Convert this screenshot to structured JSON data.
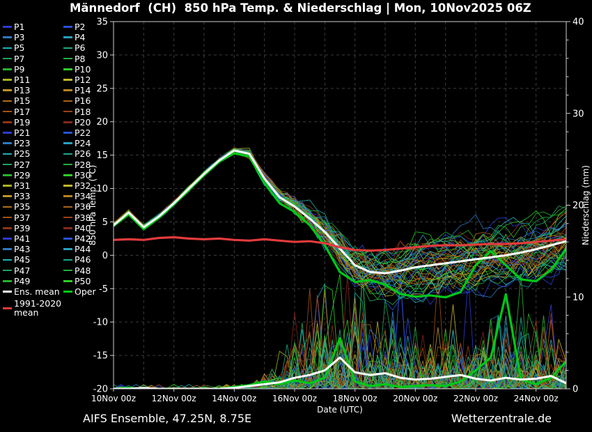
{
  "title": "Männedorf  (CH)  850 hPa Temp. & Niederschlag | Mon, 10Nov2025 06Z",
  "footer": {
    "left": "AIFS Ensemble, 47.25N, 8.75E",
    "right": "Wetterzentrale.de"
  },
  "legend": {
    "members": [
      "P1",
      "P2",
      "P3",
      "P4",
      "P5",
      "P6",
      "P7",
      "P8",
      "P9",
      "P10",
      "P11",
      "P12",
      "P13",
      "P14",
      "P15",
      "P16",
      "P17",
      "P18",
      "P19",
      "P20",
      "P21",
      "P22",
      "P23",
      "P24",
      "P25",
      "P26",
      "P27",
      "P28",
      "P29",
      "P30",
      "P31",
      "P32",
      "P33",
      "P34",
      "P35",
      "P36",
      "P37",
      "P38",
      "P39",
      "P40",
      "P41",
      "P42",
      "P43",
      "P44",
      "P45",
      "P46",
      "P47",
      "P48",
      "P49",
      "P50"
    ],
    "ens_mean_label": "Ens. mean",
    "oper_label": "Oper",
    "climate_label": "1991-2020 mean"
  },
  "colors": {
    "background": "#000000",
    "grid": "#3c3c3c",
    "axis": "#d0d0d0",
    "text": "#ffffff",
    "ens_mean": "#ffffff",
    "oper": "#00c818",
    "climate": "#e23b3b",
    "member_palette": [
      "#2b3bd1",
      "#2952d6",
      "#2d7ac2",
      "#28a0c0",
      "#1fb0b4",
      "#1ca887",
      "#1fa55e",
      "#24ad3f",
      "#27b42c",
      "#2ecc29",
      "#a8b21f",
      "#c3b62a",
      "#bd9623",
      "#b5831d",
      "#b06f18",
      "#aa6114",
      "#a45112",
      "#9c4214",
      "#8f3318",
      "#84281b"
    ]
  },
  "chart_data": {
    "type": "line",
    "x": {
      "label": "Date (UTC)",
      "total_hours": 360,
      "hours_step": 12,
      "grid_hours_step": 24,
      "tick_hours": [
        0,
        48,
        96,
        144,
        192,
        240,
        288,
        336
      ],
      "tick_labels": [
        "10Nov 00z",
        "12Nov 00z",
        "14Nov 00z",
        "16Nov 00z",
        "18Nov 00z",
        "20Nov 00z",
        "22Nov 00z",
        "24Nov 00z"
      ]
    },
    "y_left": {
      "label": "850 hPa Temp. (°C)",
      "min": -20,
      "max": 35,
      "ticks": [
        35,
        30,
        25,
        20,
        15,
        10,
        5,
        0,
        -5,
        -10,
        -15,
        -20
      ]
    },
    "y_right": {
      "label": "Niederschlag (mm)",
      "min": 0,
      "max": 40,
      "ticks": [
        40,
        30,
        20,
        10,
        0
      ],
      "minor_step": 2
    },
    "series": {
      "ens_mean_temp": [
        4.5,
        6.4,
        4.2,
        5.8,
        7.8,
        10.0,
        12.2,
        14.2,
        15.7,
        15.2,
        11.5,
        8.7,
        7.3,
        5.5,
        3.5,
        1.0,
        -1.5,
        -2.5,
        -2.7,
        -2.3,
        -1.8,
        -1.5,
        -1.2,
        -0.9,
        -0.6,
        -0.3,
        0.0,
        0.4,
        0.9,
        1.5,
        2.1
      ],
      "oper_temp": [
        4.4,
        6.1,
        3.9,
        5.6,
        7.6,
        9.8,
        12.0,
        14.0,
        15.3,
        14.8,
        10.8,
        7.8,
        6.5,
        4.5,
        1.5,
        -2.5,
        -4.0,
        -3.7,
        -4.4,
        -5.8,
        -6.2,
        -6.0,
        -6.3,
        -5.5,
        -1.5,
        0.6,
        -1.5,
        -3.6,
        -3.9,
        -2.2,
        1.0
      ],
      "climate_mean_temp": [
        2.3,
        2.4,
        2.3,
        2.6,
        2.7,
        2.5,
        2.4,
        2.5,
        2.3,
        2.2,
        2.4,
        2.2,
        2.0,
        2.1,
        1.8,
        1.2,
        0.8,
        0.7,
        0.8,
        1.0,
        1.2,
        1.4,
        1.5,
        1.5,
        1.6,
        1.7,
        1.7,
        1.8,
        2.0,
        2.2,
        2.4
      ],
      "ens_mean_precip": [
        0,
        0,
        0.1,
        0,
        0,
        0,
        0,
        0,
        0.1,
        0.3,
        0.5,
        0.7,
        1.2,
        1.5,
        2.0,
        3.4,
        1.8,
        1.5,
        1.7,
        1.2,
        1.0,
        1.1,
        1.3,
        1.5,
        1.1,
        0.9,
        1.2,
        1.0,
        1.1,
        1.4,
        0.6
      ],
      "oper_precip": [
        0,
        0.1,
        0,
        0,
        0,
        0,
        0,
        0,
        0.2,
        0.4,
        0.8,
        0.5,
        0.9,
        0.6,
        1.2,
        5.5,
        0.8,
        0.3,
        0.5,
        0.2,
        0.3,
        0.4,
        0.3,
        0.8,
        2.0,
        3.4,
        10.3,
        1.0,
        0.5,
        1.2,
        3.0
      ]
    },
    "members": {
      "count": 50,
      "temp_base_noise": 0.3,
      "temp_max_noise": 2.0,
      "noise_ramp_hours": [
        96,
        192
      ],
      "bias_spread": 7,
      "bias_ramp_hours": [
        144,
        240
      ],
      "precip_onset_hours": 104,
      "precip_scale": 1.6,
      "precip_max": 12.5,
      "seed": 13
    }
  }
}
